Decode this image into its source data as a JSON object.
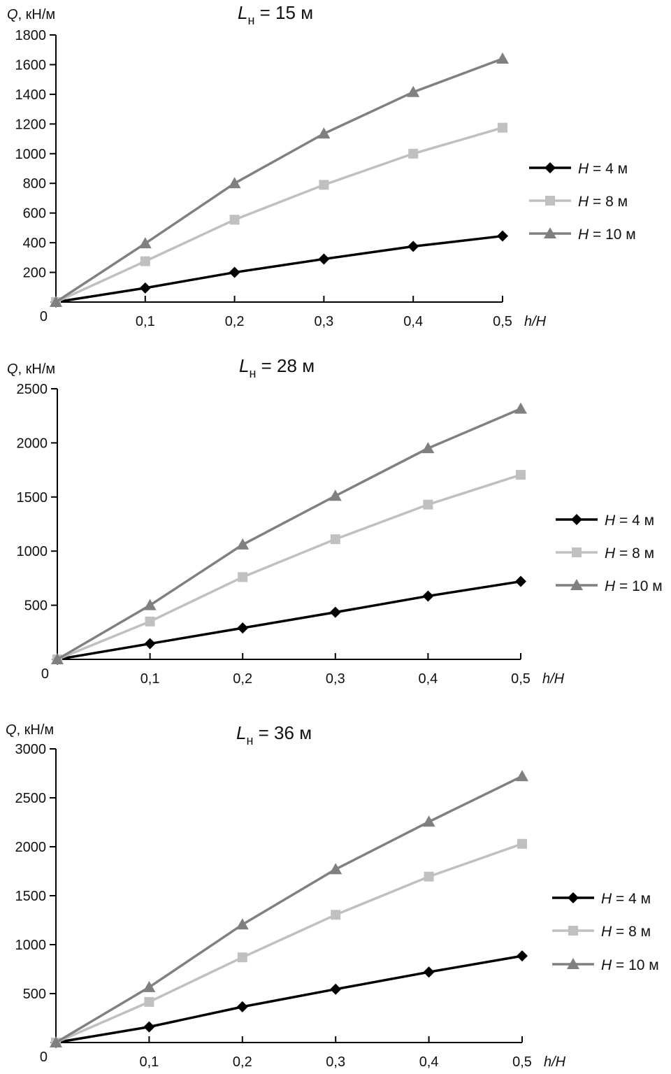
{
  "chart_data": [
    {
      "type": "line",
      "title_main": "L",
      "title_sub": "н",
      "title_rest": " = 15 м",
      "ylabel_var": "Q",
      "ylabel_unit": ", кН/м",
      "xlabel_num": "h",
      "xlabel_den": "/H",
      "x": [
        0,
        0.1,
        0.2,
        0.3,
        0.4,
        0.5
      ],
      "x_tick_labels": [
        "0,1",
        "0,2",
        "0,3",
        "0,4",
        "0,5"
      ],
      "origin_label": "0",
      "ylim": [
        0,
        1800
      ],
      "y_ticks": [
        200,
        400,
        600,
        800,
        1000,
        1200,
        1400,
        1600,
        1800
      ],
      "legend_position": "right",
      "series": [
        {
          "var": "H",
          "name": " = 4 м",
          "marker": "diamond",
          "color": "#000000",
          "values": [
            0,
            95,
            200,
            290,
            375,
            445
          ]
        },
        {
          "var": "H",
          "name": " = 8 м",
          "marker": "square",
          "color": "#c0c0c0",
          "values": [
            0,
            275,
            555,
            790,
            1000,
            1175
          ]
        },
        {
          "var": "H",
          "name": " = 10 м",
          "marker": "triangle",
          "color": "#808080",
          "values": [
            0,
            395,
            800,
            1135,
            1415,
            1640
          ]
        }
      ]
    },
    {
      "type": "line",
      "title_main": "L",
      "title_sub": "н",
      "title_rest": " = 28 м",
      "ylabel_var": "Q",
      "ylabel_unit": ", кН/м",
      "xlabel_num": "h",
      "xlabel_den": "/H",
      "x": [
        0,
        0.1,
        0.2,
        0.3,
        0.4,
        0.5
      ],
      "x_tick_labels": [
        "0,1",
        "0,2",
        "0,3",
        "0,4",
        "0,5"
      ],
      "origin_label": "0",
      "ylim": [
        0,
        2500
      ],
      "y_ticks": [
        500,
        1000,
        1500,
        2000,
        2500
      ],
      "legend_position": "right",
      "series": [
        {
          "var": "H",
          "name": " = 4 м",
          "marker": "diamond",
          "color": "#000000",
          "values": [
            0,
            145,
            290,
            435,
            585,
            720
          ]
        },
        {
          "var": "H",
          "name": " = 8 м",
          "marker": "square",
          "color": "#c0c0c0",
          "values": [
            0,
            350,
            760,
            1110,
            1430,
            1705
          ]
        },
        {
          "var": "H",
          "name": " = 10 м",
          "marker": "triangle",
          "color": "#808080",
          "values": [
            0,
            500,
            1060,
            1510,
            1950,
            2315
          ]
        }
      ]
    },
    {
      "type": "line",
      "title_main": "L",
      "title_sub": "н",
      "title_rest": " = 36 м",
      "ylabel_var": "Q",
      "ylabel_unit": ", кН/м",
      "xlabel_num": "h",
      "xlabel_den": "/H",
      "x": [
        0,
        0.1,
        0.2,
        0.3,
        0.4,
        0.5
      ],
      "x_tick_labels": [
        "0,1",
        "0,2",
        "0,3",
        "0,4",
        "0,5"
      ],
      "origin_label": "0",
      "ylim": [
        0,
        3000
      ],
      "y_ticks": [
        500,
        1000,
        1500,
        2000,
        2500,
        3000
      ],
      "legend_position": "right",
      "series": [
        {
          "var": "H",
          "name": " = 4 м",
          "marker": "diamond",
          "color": "#000000",
          "values": [
            0,
            160,
            365,
            545,
            720,
            885
          ]
        },
        {
          "var": "H",
          "name": " = 8 м",
          "marker": "square",
          "color": "#c0c0c0",
          "values": [
            0,
            415,
            870,
            1305,
            1695,
            2030
          ]
        },
        {
          "var": "H",
          "name": " = 10 м",
          "marker": "triangle",
          "color": "#808080",
          "values": [
            0,
            565,
            1205,
            1770,
            2255,
            2720
          ]
        }
      ]
    }
  ]
}
